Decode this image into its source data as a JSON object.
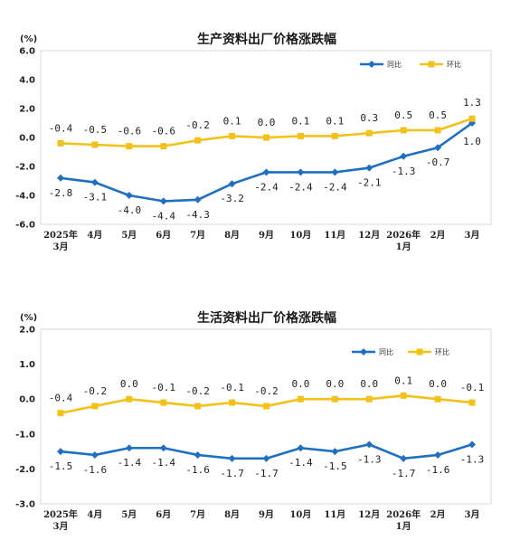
{
  "chart_data": [
    {
      "type": "line",
      "title": "生产资料出厂价格涨跌幅",
      "unit": "(%)",
      "ylim": [
        -6.0,
        6.0
      ],
      "yticks": [
        "6.0",
        "4.0",
        "2.0",
        "0.0",
        "-2.0",
        "-4.0",
        "-6.0"
      ],
      "categories": [
        "2025年\n3月",
        "4月",
        "5月",
        "6月",
        "7月",
        "8月",
        "9月",
        "10月",
        "11月",
        "12月",
        "2026年\n1月",
        "2月",
        "3月"
      ],
      "series": [
        {
          "name": "同比",
          "color": "#1f6fc4",
          "values": [
            -2.8,
            -3.1,
            -4.0,
            -4.4,
            -4.3,
            -3.2,
            -2.4,
            -2.4,
            -2.4,
            -2.1,
            -1.3,
            -0.7,
            1.0
          ],
          "labels": [
            "-2.8",
            "-3.1",
            "-4.0",
            "-4.4",
            "-4.3",
            "-3.2",
            "-2.4",
            "-2.4",
            "-2.4",
            "-2.1",
            "-1.3",
            "-0.7",
            "1.0"
          ]
        },
        {
          "name": "环比",
          "color": "#f2c21b",
          "values": [
            -0.4,
            -0.5,
            -0.6,
            -0.6,
            -0.2,
            0.1,
            0.0,
            0.1,
            0.1,
            0.3,
            0.5,
            0.5,
            1.3
          ],
          "labels": [
            "-0.4",
            "-0.5",
            "-0.6",
            "-0.6",
            "-0.2",
            "0.1",
            "0.0",
            "0.1",
            "0.1",
            "0.3",
            "0.5",
            "0.5",
            "1.3"
          ]
        }
      ],
      "legend": "top-right",
      "grid": false
    },
    {
      "type": "line",
      "title": "生活资料出厂价格涨跌幅",
      "unit": "(%)",
      "ylim": [
        -3.0,
        2.0
      ],
      "yticks": [
        "2.0",
        "1.0",
        "0.0",
        "-1.0",
        "-2.0",
        "-3.0"
      ],
      "categories": [
        "2025年\n3月",
        "4月",
        "5月",
        "6月",
        "7月",
        "8月",
        "9月",
        "10月",
        "11月",
        "12月",
        "2026年\n1月",
        "2月",
        "3月"
      ],
      "series": [
        {
          "name": "同比",
          "color": "#1f6fc4",
          "values": [
            -1.5,
            -1.6,
            -1.4,
            -1.4,
            -1.6,
            -1.7,
            -1.7,
            -1.4,
            -1.5,
            -1.3,
            -1.7,
            -1.6,
            -1.3
          ],
          "labels": [
            "-1.5",
            "-1.6",
            "-1.4",
            "-1.4",
            "-1.6",
            "-1.7",
            "-1.7",
            "-1.4",
            "-1.5",
            "-1.3",
            "-1.7",
            "-1.6",
            "-1.3"
          ]
        },
        {
          "name": "环比",
          "color": "#f2c21b",
          "values": [
            -0.4,
            -0.2,
            0.0,
            -0.1,
            -0.2,
            -0.1,
            -0.2,
            0.0,
            0.0,
            0.0,
            0.1,
            0.0,
            -0.1
          ],
          "labels": [
            "-0.4",
            "-0.2",
            "0.0",
            "-0.1",
            "-0.2",
            "-0.1",
            "-0.2",
            "0.0",
            "0.0",
            "0.0",
            "0.1",
            "0.0",
            "-0.1"
          ]
        }
      ],
      "legend": "top-right",
      "grid": false
    }
  ]
}
